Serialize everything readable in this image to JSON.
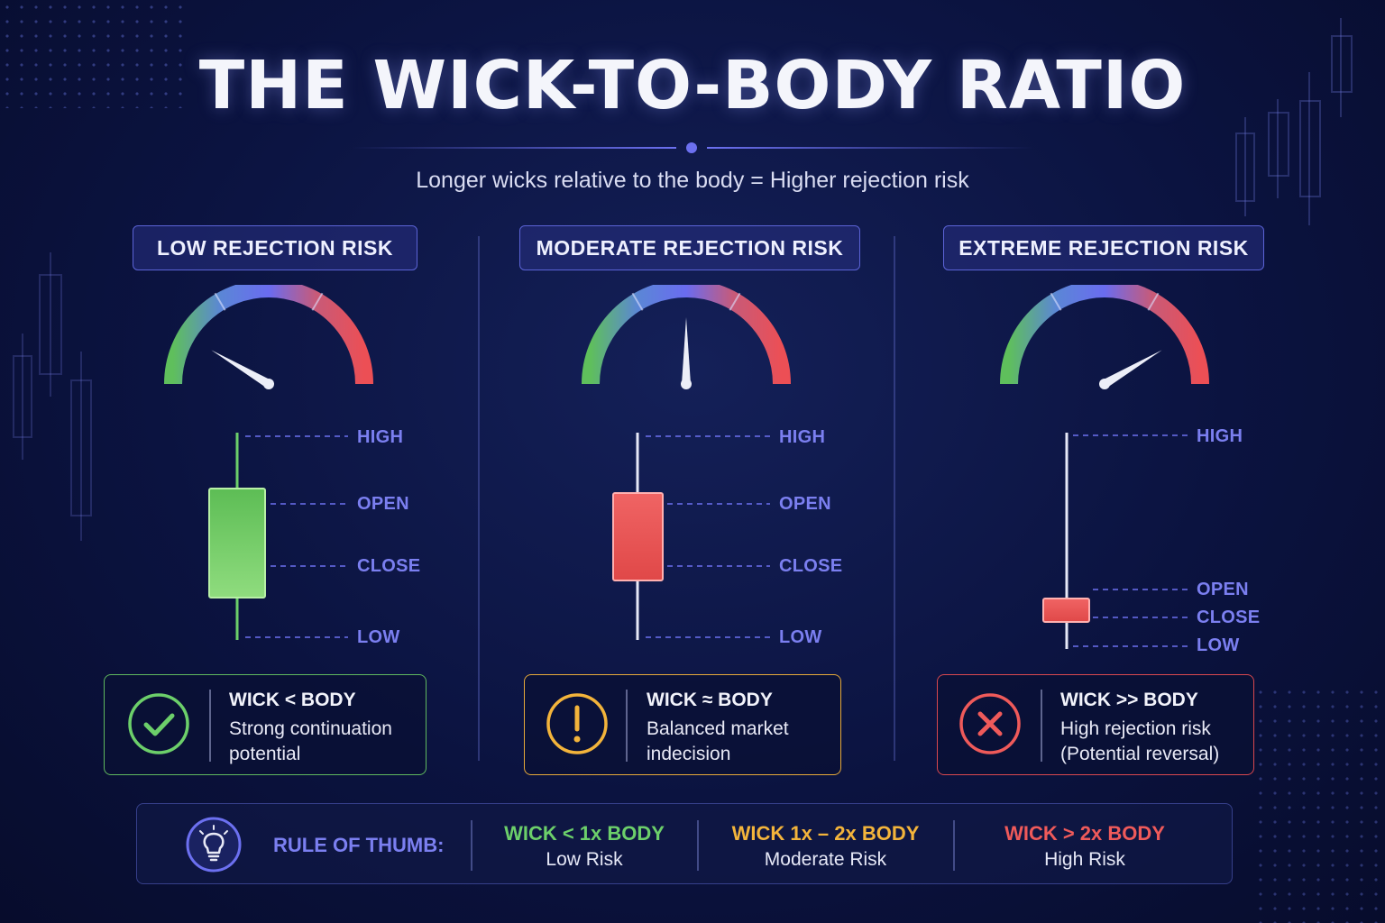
{
  "title": "THE WICK-TO-BODY RATIO",
  "subtitle": "Longer wicks relative to the body = Higher rejection risk",
  "colors": {
    "green": "#6ccf6a",
    "orange": "#f3b43b",
    "red": "#ef5a5a",
    "accent": "#6c70f0"
  },
  "panels": [
    {
      "label": "LOW REJECTION RISK",
      "gauge_level": 0.17,
      "candle": {
        "color": "green",
        "high": "HIGH",
        "open": "OPEN",
        "close": "CLOSE",
        "low": "LOW"
      },
      "card": {
        "icon": "check-circle-icon",
        "title": "WICK < BODY",
        "description": "Strong continuation potential"
      }
    },
    {
      "label": "MODERATE REJECTION RISK",
      "gauge_level": 0.5,
      "candle": {
        "color": "red",
        "high": "HIGH",
        "open": "OPEN",
        "close": "CLOSE",
        "low": "LOW"
      },
      "card": {
        "icon": "exclamation-circle-icon",
        "title": "WICK ≈ BODY",
        "description": "Balanced market indecision"
      }
    },
    {
      "label": "EXTREME REJECTION RISK",
      "gauge_level": 0.83,
      "candle": {
        "color": "red",
        "high": "HIGH",
        "open": "OPEN",
        "close": "CLOSE",
        "low": "LOW"
      },
      "card": {
        "icon": "x-circle-icon",
        "title": "WICK >> BODY",
        "description": "High rejection risk (Potential reversal)"
      }
    }
  ],
  "rule": {
    "icon": "lightbulb-icon",
    "label": "RULE OF THUMB:",
    "items": [
      {
        "title": "WICK < 1x BODY",
        "description": "Low Risk"
      },
      {
        "title": "WICK 1x – 2x BODY",
        "description": "Moderate Risk"
      },
      {
        "title": "WICK > 2x BODY",
        "description": "High Risk"
      }
    ]
  }
}
